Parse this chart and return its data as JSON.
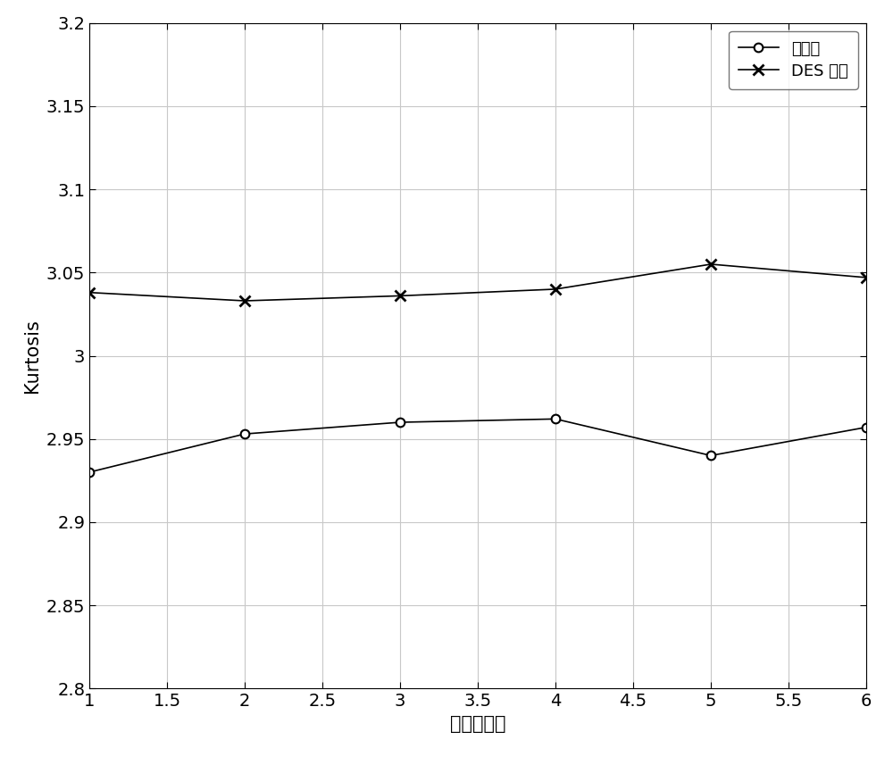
{
  "x": [
    1,
    2,
    3,
    4,
    5,
    6
  ],
  "unencrypted": [
    2.93,
    2.953,
    2.96,
    2.962,
    2.94,
    2.957
  ],
  "des_encrypted": [
    3.038,
    3.033,
    3.036,
    3.04,
    3.055,
    3.047
  ],
  "unencrypted_label": "未加密",
  "des_label": "DES 加密",
  "xlabel": "特征値序列",
  "ylabel": "Kurtosis",
  "xlim": [
    1,
    6
  ],
  "ylim": [
    2.8,
    3.2
  ],
  "ytick_vals": [
    2.8,
    2.85,
    2.9,
    2.95,
    3.0,
    3.05,
    3.1,
    3.15,
    3.2
  ],
  "ytick_labels": [
    "2.8",
    "2.85",
    "2.9",
    "2.95",
    "3",
    "3.05",
    "3.1",
    "3.15",
    "3.2"
  ],
  "xticks": [
    1.0,
    1.5,
    2.0,
    2.5,
    3.0,
    3.5,
    4.0,
    4.5,
    5.0,
    5.5,
    6.0
  ],
  "xtick_labels": [
    "1",
    "1.5",
    "2",
    "2.5",
    "3",
    "3.5",
    "4",
    "4.5",
    "5",
    "5.5",
    "6"
  ],
  "line_color": "#000000",
  "background_color": "#ffffff",
  "grid_color": "#c8c8c8"
}
